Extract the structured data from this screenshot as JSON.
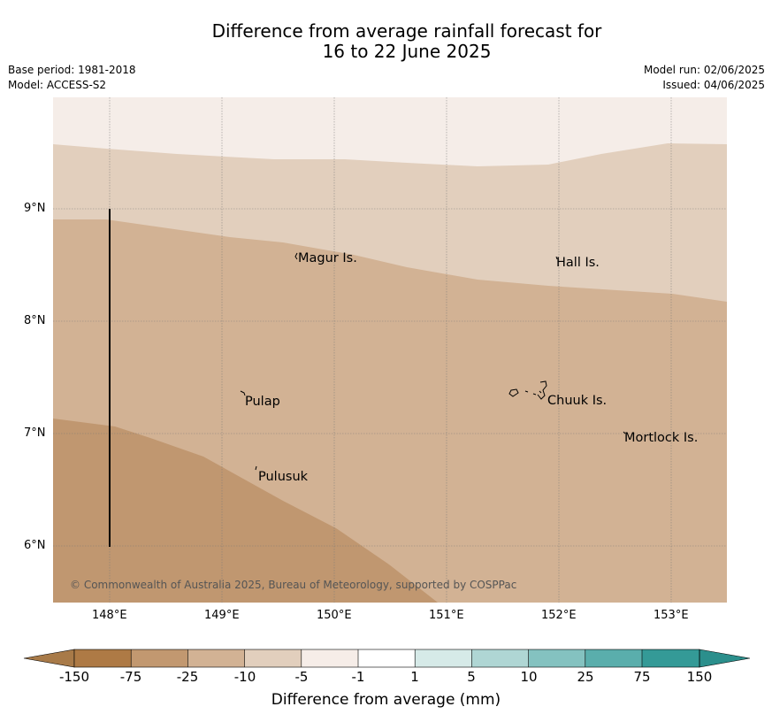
{
  "title": {
    "line1": "Difference from average rainfall forecast for",
    "line2": "16 to 22 June 2025"
  },
  "meta": {
    "base_period": "Base period: 1981-2018",
    "model": "Model: ACCESS-S2",
    "model_run": "Model run: 02/06/2025",
    "issued": "Issued: 04/06/2025"
  },
  "map": {
    "lon_ticks": [
      "148°E",
      "149°E",
      "150°E",
      "151°E",
      "152°E",
      "153°E"
    ],
    "lat_ticks": [
      "9°N",
      "8°N",
      "7°N",
      "6°N"
    ],
    "places": {
      "magur": "Magur Is.",
      "hall": "Hall Is.",
      "pulap": "Pulap",
      "chuuk": "Chuuk Is.",
      "mortlock": "Mortlock Is.",
      "pulusuk": "Pulusuk"
    },
    "copyright": "© Commonwealth of Australia 2025, Bureau of Meteorology, supported by COSPPac",
    "colors": {
      "band_minus25_minus75": "#c09770",
      "band_minus10_minus25": "#d2b294",
      "band_minus5_minus10": "#e2cfbd",
      "band_minus1_minus5": "#f5ede8"
    }
  },
  "colorbar": {
    "labels": [
      "-150",
      "-75",
      "-25",
      "-10",
      "-5",
      "-1",
      "1",
      "5",
      "10",
      "25",
      "75",
      "150"
    ],
    "colors": [
      "#a87a48",
      "#ae7a45",
      "#c29870",
      "#d2b294",
      "#e2cfbd",
      "#f6ede8",
      "#ffffff",
      "#d6eae8",
      "#afd6d4",
      "#84c2c0",
      "#5aaeac",
      "#349a97",
      "#2b8f8c"
    ],
    "title": "Difference from average (mm)"
  }
}
